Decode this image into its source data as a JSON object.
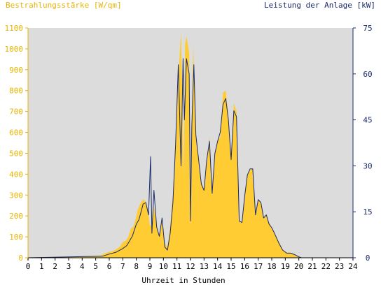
{
  "chart_data": {
    "type": "area",
    "left_axis_title": "Bestrahlungsstärke [W/qm]",
    "right_axis_title": "Leistung der Anlage [kW]",
    "xlabel": "Uhrzeit in Stunden",
    "x_ticks": [
      "0",
      "1",
      "2",
      "3",
      "4",
      "5",
      "6",
      "7",
      "8",
      "9",
      "10",
      "11",
      "12",
      "13",
      "14",
      "15",
      "16",
      "17",
      "18",
      "19",
      "20",
      "21",
      "22",
      "23",
      "24"
    ],
    "y_left_ticks": [
      "0",
      "100",
      "200",
      "300",
      "400",
      "500",
      "600",
      "700",
      "800",
      "900",
      "1000",
      "1100"
    ],
    "y_right_ticks": [
      "0",
      "15",
      "30",
      "45",
      "60",
      "75"
    ],
    "xlim": [
      0,
      24
    ],
    "ylim_left": [
      0,
      1100
    ],
    "ylim_right": [
      0,
      75
    ],
    "grid": false,
    "colors": {
      "plot_background": "#dcdcdc",
      "irradiance_fill": "#ffcc33",
      "power_line": "#1a2b6b",
      "left_axis_text": "#e8b400",
      "right_axis_text": "#1a2b6b",
      "x_axis_text": "#000000"
    },
    "series": [
      {
        "name": "Bestrahlungsstärke [W/qm]",
        "axis": "left",
        "x": [
          0,
          5.4,
          5.6,
          6.0,
          6.4,
          6.8,
          7.0,
          7.2,
          7.4,
          7.6,
          7.8,
          8.0,
          8.1,
          8.3,
          8.5,
          8.7,
          8.9,
          9.0,
          9.1,
          9.3,
          9.5,
          9.7,
          9.9,
          10.1,
          10.3,
          10.5,
          10.7,
          10.9,
          11.1,
          11.3,
          11.5,
          11.6,
          11.7,
          11.9,
          12.0,
          12.1,
          12.2,
          12.4,
          12.6,
          12.8,
          13.0,
          13.2,
          13.4,
          13.6,
          13.8,
          14.0,
          14.2,
          14.4,
          14.6,
          14.8,
          15.0,
          15.2,
          15.4,
          15.6,
          15.8,
          16.0,
          16.2,
          16.4,
          16.6,
          16.8,
          17.0,
          17.2,
          17.4,
          17.6,
          17.8,
          18.0,
          18.2,
          18.5,
          18.8,
          19.1,
          19.4,
          19.7,
          20.0,
          20.2,
          24
        ],
        "values": [
          0,
          10,
          20,
          28,
          35,
          55,
          75,
          80,
          100,
          140,
          150,
          200,
          230,
          260,
          280,
          270,
          210,
          150,
          160,
          250,
          160,
          100,
          190,
          70,
          50,
          150,
          300,
          560,
          860,
          1080,
          400,
          1020,
          1060,
          980,
          150,
          680,
          1010,
          600,
          470,
          360,
          330,
          460,
          580,
          300,
          500,
          560,
          580,
          790,
          800,
          680,
          470,
          740,
          700,
          180,
          170,
          300,
          400,
          420,
          430,
          200,
          280,
          260,
          190,
          200,
          170,
          145,
          120,
          80,
          40,
          25,
          25,
          15,
          5,
          0,
          0
        ]
      },
      {
        "name": "Leistung der Anlage [kW]",
        "axis": "right",
        "x": [
          0,
          5.5,
          6.0,
          6.5,
          7.0,
          7.3,
          7.5,
          7.7,
          8.0,
          8.2,
          8.5,
          8.7,
          8.9,
          9.05,
          9.15,
          9.3,
          9.5,
          9.7,
          9.9,
          10.1,
          10.3,
          10.5,
          10.7,
          10.9,
          11.1,
          11.3,
          11.45,
          11.55,
          11.7,
          11.9,
          12.0,
          12.1,
          12.25,
          12.4,
          12.6,
          12.8,
          13.0,
          13.2,
          13.4,
          13.6,
          13.8,
          14.0,
          14.2,
          14.4,
          14.6,
          14.8,
          15.0,
          15.2,
          15.4,
          15.6,
          15.8,
          16.0,
          16.2,
          16.4,
          16.6,
          16.8,
          17.0,
          17.2,
          17.4,
          17.6,
          17.8,
          18.0,
          18.2,
          18.5,
          18.8,
          19.1,
          19.4,
          19.7,
          20.0,
          20.2,
          24
        ],
        "values": [
          0,
          0.5,
          1.2,
          1.8,
          3.0,
          4.0,
          5.5,
          7.0,
          11.0,
          12.5,
          17.5,
          18.0,
          14.0,
          33.0,
          8.0,
          22.0,
          10.0,
          7.0,
          13.0,
          3.5,
          2.5,
          8.0,
          18.0,
          37.0,
          63.0,
          30.0,
          65.0,
          45.0,
          65.0,
          60.0,
          12.0,
          43.0,
          63.0,
          40.0,
          32.0,
          24.0,
          22.0,
          32.0,
          38.0,
          21.0,
          34.0,
          38.0,
          41.0,
          50.0,
          52.0,
          45.0,
          32.0,
          48.0,
          46.0,
          12.0,
          11.5,
          20.0,
          27.0,
          29.0,
          29.0,
          14.0,
          19.0,
          18.0,
          13.0,
          14.0,
          11.0,
          9.8,
          8.0,
          5.0,
          2.5,
          1.5,
          1.5,
          1.0,
          0.3,
          0,
          0
        ]
      }
    ]
  }
}
